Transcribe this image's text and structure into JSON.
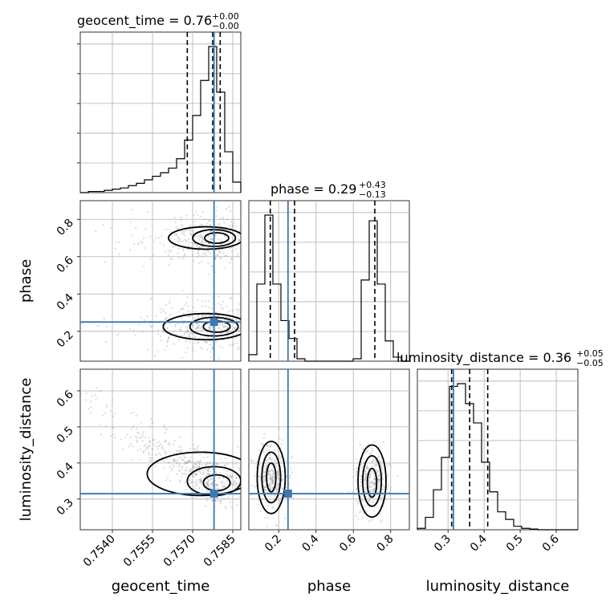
{
  "chart_data": {
    "type": "corner",
    "parameters": [
      {
        "name": "geocent_time",
        "xlabel": "geocent_time",
        "ylabel": "",
        "title": "geocent_time = 0.76",
        "title_plus": "+0.00",
        "title_minus": "−0.00",
        "range": [
          0.7528,
          0.7588
        ],
        "ticks": [
          0.754,
          0.7555,
          0.757,
          0.7585
        ],
        "tick_labels": [
          "0.7540",
          "0.7555",
          "0.7570",
          "0.7585"
        ],
        "truth": 0.7578,
        "quantiles": [
          0.7568,
          0.75775,
          0.75803
        ],
        "histogram": {
          "edges": [
            0.7528,
            0.7531,
            0.7534,
            0.7537,
            0.754,
            0.7543,
            0.7546,
            0.7549,
            0.7552,
            0.7555,
            0.7558,
            0.7561,
            0.7564,
            0.7567,
            0.757,
            0.7573,
            0.7576,
            0.7579,
            0.7582,
            0.7585,
            0.7588
          ],
          "counts": [
            0,
            1,
            1,
            2,
            3,
            4,
            6,
            8,
            11,
            14,
            17,
            21,
            29,
            45,
            66,
            96,
            125,
            86,
            35,
            9
          ]
        }
      },
      {
        "name": "phase",
        "xlabel": "phase",
        "ylabel": "phase",
        "title": "phase = 0.29",
        "title_plus": "+0.43",
        "title_minus": "−0.13",
        "range": [
          0.04,
          0.9
        ],
        "ticks": [
          0.2,
          0.4,
          0.6,
          0.8
        ],
        "tick_labels": [
          "0.2",
          "0.4",
          "0.6",
          "0.8"
        ],
        "truth": 0.25,
        "quantiles": [
          0.155,
          0.285,
          0.715
        ],
        "histogram": {
          "edges": [
            0.04,
            0.083,
            0.126,
            0.169,
            0.212,
            0.255,
            0.298,
            0.341,
            0.384,
            0.427,
            0.47,
            0.513,
            0.556,
            0.599,
            0.642,
            0.685,
            0.728,
            0.771,
            0.814,
            0.857,
            0.9
          ],
          "counts": [
            8,
            95,
            180,
            95,
            50,
            28,
            3,
            0,
            0,
            0,
            0,
            0,
            0,
            3,
            100,
            173,
            95,
            25,
            5,
            0
          ]
        }
      },
      {
        "name": "luminosity_distance",
        "xlabel": "luminosity_distance",
        "ylabel": "luminosity_distance",
        "title": "luminosity_distance = 0.36",
        "title_plus": "+0.05",
        "title_minus": "−0.05",
        "range": [
          0.215,
          0.66
        ],
        "ticks": [
          0.3,
          0.4,
          0.5,
          0.6
        ],
        "tick_labels": [
          "0.3",
          "0.4",
          "0.5",
          "0.6"
        ],
        "truth": 0.315,
        "quantiles": [
          0.31,
          0.36,
          0.41
        ],
        "histogram": {
          "edges": [
            0.215,
            0.23725,
            0.2595,
            0.28175,
            0.304,
            0.32625,
            0.3485,
            0.37075,
            0.393,
            0.41525,
            0.4375,
            0.45975,
            0.482,
            0.50425,
            0.5265,
            0.54875,
            0.571,
            0.59325,
            0.6155,
            0.63775,
            0.66
          ],
          "counts": [
            2,
            18,
            58,
            105,
            208,
            212,
            183,
            155,
            98,
            55,
            26,
            15,
            5,
            2,
            1,
            0,
            0,
            0,
            0,
            0
          ]
        }
      }
    ]
  }
}
